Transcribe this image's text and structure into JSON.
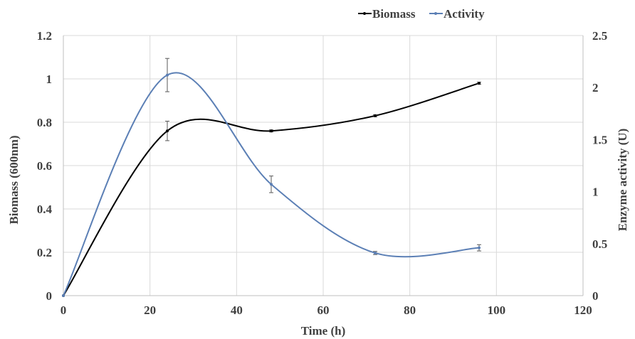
{
  "chart_data": {
    "type": "line",
    "title": "",
    "xlabel": "Time (h)",
    "ylabel": "Biomass (600nm)",
    "y2label": "Enzyme activity (U)",
    "xlim": [
      0,
      120
    ],
    "ylim": [
      0,
      1.2
    ],
    "y2lim": [
      0,
      2.5
    ],
    "xticks": [
      "0",
      "20",
      "40",
      "60",
      "80",
      "100",
      "120"
    ],
    "yticks": [
      "0",
      "0.2",
      "0.4",
      "0.6",
      "0.8",
      "1",
      "1.2"
    ],
    "y2ticks": [
      "0",
      "0.5",
      "1",
      "1.5",
      "2",
      "2.5"
    ],
    "grid": true,
    "legend_position": "top-right",
    "series": [
      {
        "name": "Biomass",
        "axis": "left",
        "color": "#000000",
        "x": [
          0,
          24,
          48,
          72,
          96
        ],
        "y": [
          0,
          0.76,
          0.76,
          0.83,
          0.98
        ],
        "error": [
          0,
          0.045,
          0.005,
          0.005,
          0.005
        ]
      },
      {
        "name": "Activity",
        "axis": "right",
        "color": "#5b7fb5",
        "x": [
          0,
          24,
          48,
          72,
          96
        ],
        "y": [
          0,
          2.12,
          1.07,
          0.41,
          0.46
        ],
        "error": [
          0,
          0.16,
          0.08,
          0.015,
          0.03
        ]
      }
    ]
  }
}
